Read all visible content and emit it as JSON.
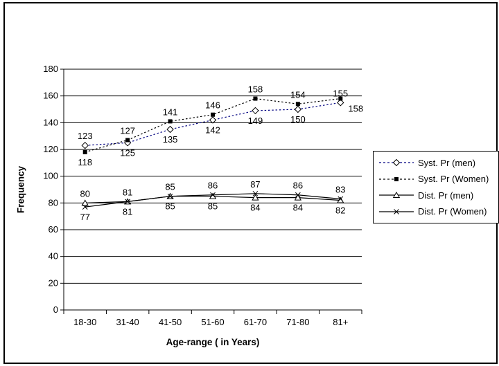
{
  "chart_data": {
    "type": "line",
    "title": "",
    "xlabel": "Age-range ( in Years)",
    "ylabel": "Frequency",
    "categories": [
      "18-30",
      "31-40",
      "41-50",
      "51-60",
      "61-70",
      "71-80",
      "81+"
    ],
    "y_ticks": [
      0,
      20,
      40,
      60,
      80,
      100,
      120,
      140,
      160,
      180
    ],
    "ylim": [
      0,
      180
    ],
    "grid": true,
    "legend_position": "right",
    "series": [
      {
        "key": "syst-pr-men",
        "name": "Syst. Pr (men)",
        "marker": "diamond",
        "line_style": "dashed",
        "color": "#000080",
        "values": [
          123,
          125,
          135,
          142,
          149,
          150,
          155
        ],
        "label_side": [
          "above",
          "below",
          "below",
          "below",
          "below",
          "below",
          "above"
        ]
      },
      {
        "key": "syst-pr-women",
        "name": "Syst. Pr (Women)",
        "marker": "square",
        "line_style": "dashed",
        "color": "#000000",
        "values": [
          118,
          127,
          141,
          146,
          158,
          154,
          158
        ],
        "label_side": [
          "below",
          "above",
          "above",
          "above",
          "above",
          "above",
          "below"
        ],
        "label_dx": [
          0,
          0,
          0,
          0,
          0,
          0,
          22
        ]
      },
      {
        "key": "dist-pr-men",
        "name": "Dist. Pr (men)",
        "marker": "triangle",
        "line_style": "solid",
        "color": "#000000",
        "values": [
          80,
          81,
          85,
          85,
          84,
          84,
          82
        ],
        "label_side": [
          "above",
          "above",
          "below",
          "below",
          "below",
          "below",
          "below"
        ]
      },
      {
        "key": "dist-pr-women",
        "name": "Dist. Pr (Women)",
        "marker": "x",
        "line_style": "solid",
        "color": "#000000",
        "values": [
          77,
          81,
          85,
          86,
          87,
          86,
          83
        ],
        "label_side": [
          "below",
          "below",
          "above",
          "above",
          "above",
          "above",
          "above"
        ]
      }
    ]
  }
}
